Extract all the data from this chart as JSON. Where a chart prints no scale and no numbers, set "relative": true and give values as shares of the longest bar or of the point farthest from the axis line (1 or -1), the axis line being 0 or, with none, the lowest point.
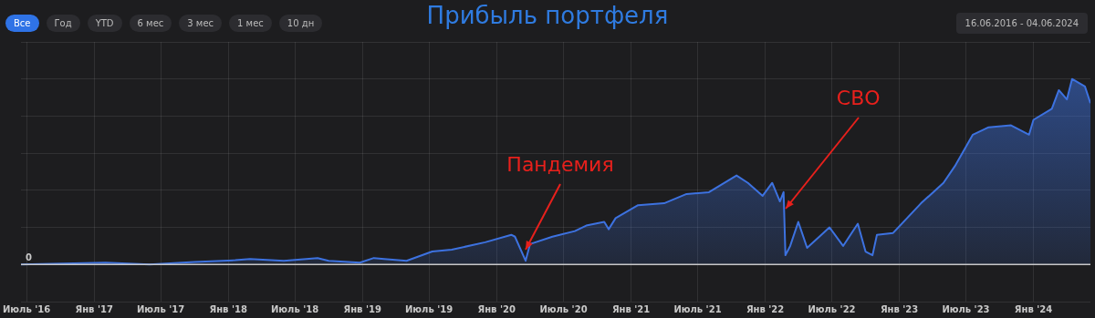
{
  "chart_data": {
    "type": "area",
    "title": "Прибыль портфеля",
    "relative": true,
    "color": "#3d72e0",
    "grid": true,
    "legend": false,
    "x": [
      "2016-06-16",
      "2017-02-01",
      "2017-06-01",
      "2017-10-01",
      "2018-01-20",
      "2018-03-01",
      "2018-06-01",
      "2018-09-01",
      "2018-10-01",
      "2018-12-25",
      "2019-02-01",
      "2019-03-01",
      "2019-05-01",
      "2019-07-10",
      "2019-09-01",
      "2019-12-01",
      "2020-02-10",
      "2020-02-20",
      "2020-03-20",
      "2020-04-01",
      "2020-06-01",
      "2020-08-01",
      "2020-09-01",
      "2020-10-20",
      "2020-11-01",
      "2020-11-20",
      "2021-01-20",
      "2021-04-01",
      "2021-06-01",
      "2021-08-01",
      "2021-10-15",
      "2021-11-15",
      "2021-12-25",
      "2022-01-20",
      "2022-02-10",
      "2022-02-20",
      "2022-02-25",
      "2022-03-10",
      "2022-04-01",
      "2022-04-25",
      "2022-06-25",
      "2022-08-01",
      "2022-09-10",
      "2022-10-01",
      "2022-10-20",
      "2022-11-01",
      "2022-12-15",
      "2023-03-01",
      "2023-05-01",
      "2023-06-01",
      "2023-07-20",
      "2023-09-01",
      "2023-11-01",
      "2023-12-20",
      "2024-01-01",
      "2024-02-20",
      "2024-03-10",
      "2024-04-01",
      "2024-04-15",
      "2024-05-20",
      "2024-06-04"
    ],
    "values": [
      0,
      0.01,
      0,
      0.014,
      0.023,
      0.03,
      0.02,
      0.035,
      0.02,
      0.01,
      0.035,
      0.03,
      0.02,
      0.07,
      0.08,
      0.12,
      0.16,
      0.15,
      0.02,
      0.11,
      0.15,
      0.18,
      0.21,
      0.23,
      0.19,
      0.25,
      0.32,
      0.33,
      0.38,
      0.39,
      0.48,
      0.44,
      0.37,
      0.44,
      0.34,
      0.39,
      0.05,
      0.1,
      0.23,
      0.09,
      0.2,
      0.1,
      0.22,
      0.07,
      0.05,
      0.16,
      0.17,
      0.33,
      0.44,
      0.53,
      0.7,
      0.74,
      0.75,
      0.7,
      0.78,
      0.84,
      0.94,
      0.89,
      1,
      0.96,
      0.87
    ],
    "xlim": [
      "2016-06-16",
      "2024-06-04"
    ],
    "xticks": [
      {
        "value": "2016-07",
        "label": "Июль '16"
      },
      {
        "value": "2017-01",
        "label": "Янв '17"
      },
      {
        "value": "2017-07",
        "label": "Июль '17"
      },
      {
        "value": "2018-01",
        "label": "Янв '18"
      },
      {
        "value": "2018-07",
        "label": "Июль '18"
      },
      {
        "value": "2019-01",
        "label": "Янв '19"
      },
      {
        "value": "2019-07",
        "label": "Июль '19"
      },
      {
        "value": "2020-01",
        "label": "Янв '20"
      },
      {
        "value": "2020-07",
        "label": "Июль '20"
      },
      {
        "value": "2021-01",
        "label": "Янв '21"
      },
      {
        "value": "2021-07",
        "label": "Июль '21"
      },
      {
        "value": "2022-01",
        "label": "Янв '22"
      },
      {
        "value": "2022-07",
        "label": "Июль '22"
      },
      {
        "value": "2023-01",
        "label": "Янв '23"
      },
      {
        "value": "2023-07",
        "label": "Июль '23"
      },
      {
        "value": "2024-01",
        "label": "Янв '24"
      }
    ],
    "ref_lines": [
      {
        "axis": "y",
        "value": 0,
        "label": "0",
        "color": "#c8c8c8"
      }
    ],
    "annotations": [
      "Все",
      "Год",
      "YTD",
      "6 мес",
      "3 мес",
      "1 мес",
      "10 дн",
      "16.06.2016 - 04.06.2024",
      {
        "text": "Пандемия",
        "x": "2020-03-20",
        "y": 0.08
      },
      {
        "text": "СВО",
        "x": "2022-02-25",
        "y": 0.3
      }
    ]
  }
}
